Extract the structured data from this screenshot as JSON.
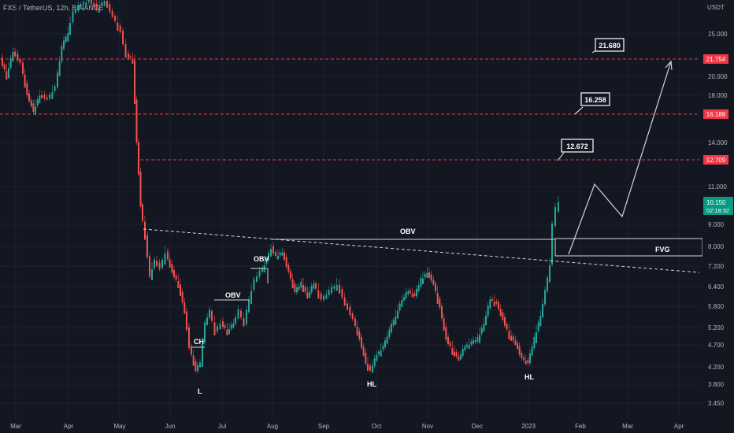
{
  "header": {
    "symbol": "FXS / TetherUS, 12h, BINANCE"
  },
  "axis": {
    "currency": "USDT",
    "y_ticks": [
      "25.000",
      "20.000",
      "18.000",
      "14.000",
      "11.000",
      "9.000",
      "8.000",
      "7.200",
      "6.400",
      "5.800",
      "5.200",
      "4.700",
      "4.200",
      "3.800",
      "3.450"
    ],
    "x_ticks": [
      "Mar",
      "Apr",
      "May",
      "Jun",
      "Jul",
      "Aug",
      "Sep",
      "Oct",
      "Nov",
      "Dec",
      "2023",
      "Feb",
      "Mar",
      "Apr"
    ]
  },
  "price_tags": {
    "level_1": "21.754",
    "level_2": "16.188",
    "level_3": "12.709",
    "current_price": "10.150",
    "countdown": "02:18:32"
  },
  "annotations": {
    "target_1": "21.680",
    "target_2": "16.258",
    "target_3": "12.672",
    "obv_main": "OBV",
    "obv_left": "OBV",
    "obv_small": "OBV",
    "fvg": "FVG",
    "ch": "CH",
    "low_l": "L",
    "hl_1": "HL",
    "hl_2": "HL"
  },
  "colors": {
    "background": "#131722",
    "up": "#26a69a",
    "down": "#ef5350",
    "level_line": "#f23645",
    "text": "#b2b5be",
    "current_tag": "#089981"
  }
}
